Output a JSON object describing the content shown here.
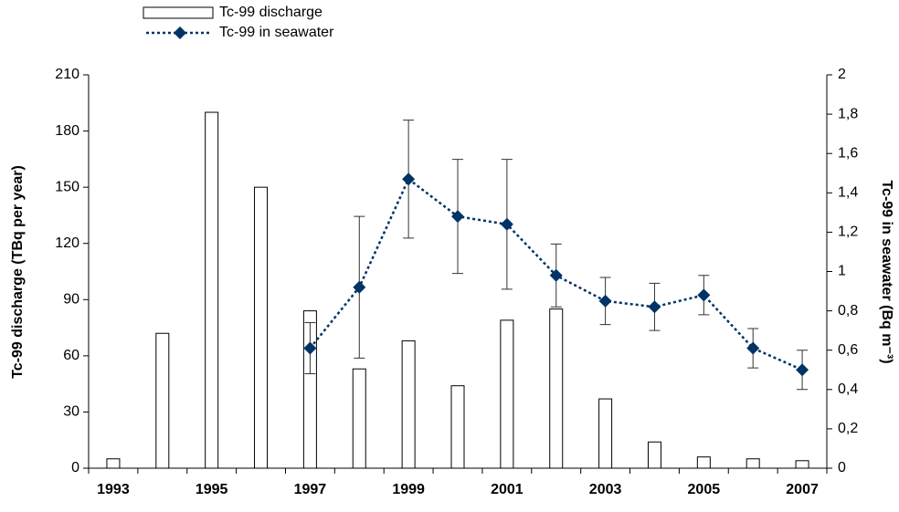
{
  "chart_data": {
    "type": "bar",
    "categories": [
      "1993",
      null,
      "1995",
      null,
      "1997",
      null,
      "1999",
      null,
      "2001",
      null,
      "2003",
      null,
      "2005",
      null,
      "2007"
    ],
    "series": [
      {
        "name": "Tc-99 discharge",
        "type": "bar",
        "color": "#ffffff",
        "values": [
          5,
          72,
          190,
          150,
          84,
          53,
          68,
          44,
          79,
          85,
          37,
          14,
          6,
          5,
          4
        ]
      },
      {
        "name": "Tc-99 in seawater",
        "type": "line",
        "axis": "y2",
        "color": "#003366",
        "values": [
          null,
          null,
          null,
          null,
          0.61,
          0.92,
          1.47,
          1.28,
          1.24,
          0.98,
          0.85,
          0.82,
          0.88,
          0.61,
          0.5
        ],
        "errors": [
          null,
          null,
          null,
          null,
          0.13,
          0.36,
          0.3,
          0.29,
          0.33,
          0.16,
          0.12,
          0.12,
          0.1,
          0.1,
          0.1
        ]
      }
    ],
    "ylabel": "Tc-99 discharge (TBq per year)",
    "y2label": "Tc-99 in seawater (Bq m⁻³)",
    "ylim": [
      0,
      210
    ],
    "yticks": [
      0,
      30,
      60,
      90,
      120,
      150,
      180,
      210
    ],
    "y2lim": [
      0,
      2
    ],
    "y2ticks": [
      0,
      {
        "value": 0.2,
        "label": "0,2"
      },
      {
        "value": 0.4,
        "label": "0,4"
      },
      {
        "value": 0.6,
        "label": "0,6"
      },
      {
        "value": 0.8,
        "label": "0,8"
      },
      1,
      {
        "value": 1.2,
        "label": "1,2"
      },
      {
        "value": 1.4,
        "label": "1,4"
      },
      {
        "value": 1.6,
        "label": "1,6"
      },
      {
        "value": 1.8,
        "label": "1,8"
      },
      2
    ],
    "legend": "top-left",
    "grid": false
  }
}
